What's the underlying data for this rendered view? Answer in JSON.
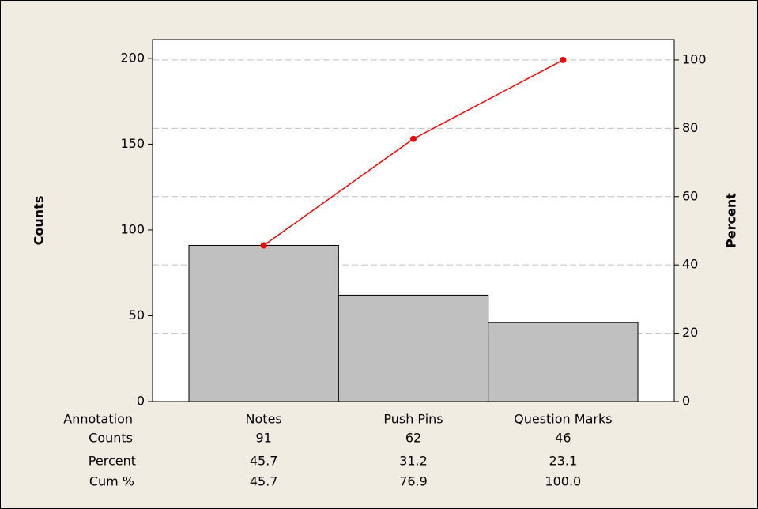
{
  "chart_data": {
    "type": "pareto",
    "y_label": "Counts",
    "y2_label": "Percent",
    "category_label": "Annotation",
    "categories": [
      "Notes",
      "Push Pins",
      "Question Marks"
    ],
    "series": [
      {
        "name": "Counts",
        "color": "#c0c0c0",
        "values": [
          91,
          62,
          46
        ]
      },
      {
        "name": "Cum %",
        "color": "#ff0000",
        "axis": "y2",
        "values": [
          45.7,
          76.9,
          100.0
        ],
        "value_labels": [
          "45.7",
          "76.9",
          "100.0"
        ]
      }
    ],
    "percent": {
      "name": "Percent",
      "values": [
        45.7,
        31.2,
        23.1
      ]
    },
    "ylim": [
      0,
      211
    ],
    "yticks": [
      0,
      50,
      100,
      150,
      200
    ],
    "y2lim": [
      0,
      106
    ],
    "y2ticks": [
      0,
      20,
      40,
      60,
      80,
      100
    ],
    "grid": "y2"
  }
}
